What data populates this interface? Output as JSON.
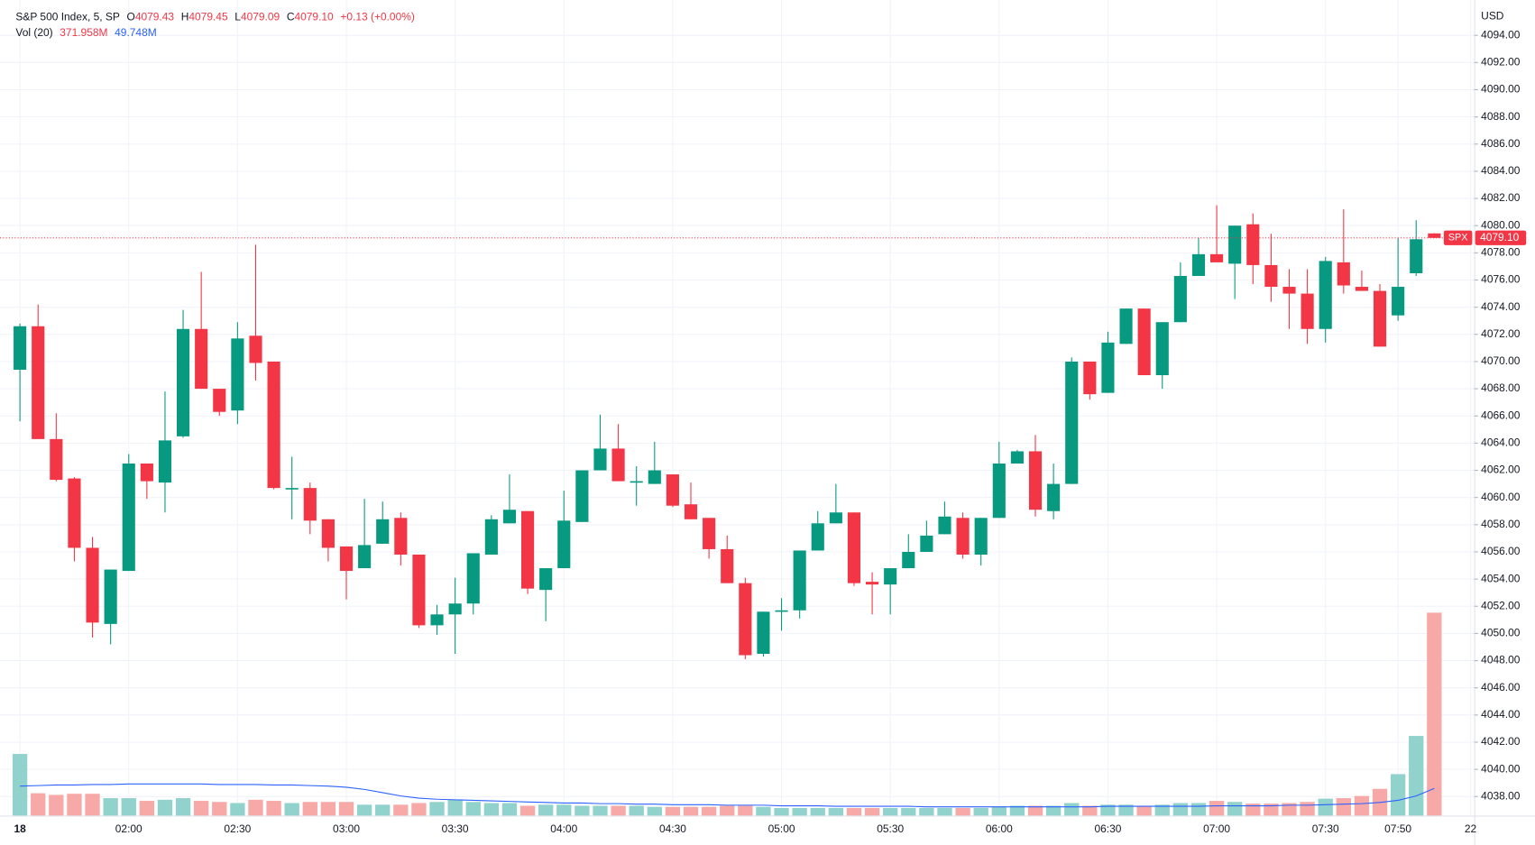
{
  "chart_data": {
    "type": "candlestick",
    "header": {
      "symbol": "S&P 500 Index, 5, SP",
      "open_key": "O",
      "open": "4079.43",
      "high_key": "H",
      "high": "4079.45",
      "low_key": "L",
      "low": "4079.09",
      "close_key": "C",
      "close": "4079.10",
      "change": "+0.13 (+0.00%)",
      "vol_name": "Vol (20)",
      "vol": "371.958M",
      "vol_ma": "49.748M"
    },
    "currency": "USD",
    "up_color": "#089981",
    "down_color": "#f23645",
    "open": [
      4069.4,
      4072.6,
      4064.3,
      4061.4,
      4056.3,
      4050.7,
      4054.6,
      4062.5,
      4061.1,
      4064.5,
      4072.4,
      4068.0,
      4066.4,
      4071.9,
      4070.0,
      4060.6,
      4060.7,
      4058.4,
      4056.4,
      4054.8,
      4056.6,
      4058.5,
      4055.8,
      4050.6,
      4051.4,
      4052.2,
      4055.8,
      4058.1,
      4059.0,
      4053.2,
      4054.8,
      4058.2,
      4062.0,
      4063.6,
      4061.1,
      4061.0,
      4061.7,
      4059.5,
      4058.5,
      4056.2,
      4053.7,
      4048.5,
      4051.6,
      4051.7,
      4056.1,
      4058.1,
      4058.9,
      4053.8,
      4053.6,
      4054.8,
      4056.0,
      4057.3,
      4058.5,
      4055.8,
      4058.5,
      4062.5,
      4063.4,
      4059.0,
      4061.0,
      4070.0,
      4067.7,
      4071.3,
      4073.9,
      4069.0,
      4072.9,
      4076.3,
      4077.9,
      4077.2,
      4080.1,
      4077.1,
      4075.5,
      4075.0,
      4072.4,
      4077.3,
      4075.5,
      4075.2,
      4073.4,
      4076.5,
      4079.43
    ],
    "high": [
      4072.8,
      4074.2,
      4066.2,
      4061.5,
      4057.1,
      4054.7,
      4063.2,
      4062.5,
      4067.8,
      4073.8,
      4076.6,
      4068.0,
      4072.9,
      4078.6,
      4070.0,
      4063.0,
      4061.1,
      4058.4,
      4056.4,
      4059.9,
      4059.7,
      4058.9,
      4055.8,
      4052.1,
      4054.1,
      4055.9,
      4058.7,
      4061.7,
      4059.0,
      4054.8,
      4060.5,
      4062.0,
      4066.1,
      4065.4,
      4062.3,
      4064.1,
      4061.7,
      4061.1,
      4058.5,
      4057.2,
      4054.1,
      4051.6,
      4052.6,
      4056.1,
      4059.0,
      4061.0,
      4058.9,
      4054.5,
      4054.8,
      4057.3,
      4058.3,
      4059.7,
      4058.9,
      4058.5,
      4064.1,
      4063.5,
      4064.6,
      4062.5,
      4070.3,
      4070.0,
      4072.2,
      4073.9,
      4073.9,
      4072.9,
      4077.3,
      4079.1,
      4081.5,
      4080.0,
      4080.9,
      4079.4,
      4076.8,
      4076.8,
      4077.7,
      4081.2,
      4076.7,
      4075.7,
      4079.1,
      4080.4,
      4079.45
    ],
    "low": [
      4065.6,
      4064.3,
      4061.2,
      4055.3,
      4049.7,
      4049.2,
      4054.6,
      4059.9,
      4058.9,
      4064.4,
      4068.0,
      4066.0,
      4065.4,
      4068.6,
      4060.6,
      4058.4,
      4057.3,
      4055.3,
      4052.5,
      4054.8,
      4056.6,
      4055.0,
      4050.4,
      4049.9,
      4048.5,
      4051.4,
      4055.8,
      4058.1,
      4052.9,
      4050.9,
      4054.8,
      4058.2,
      4062.0,
      4061.2,
      4059.4,
      4061.0,
      4059.3,
      4058.4,
      4055.5,
      4053.7,
      4048.1,
      4048.3,
      4050.2,
      4051.1,
      4056.1,
      4058.1,
      4053.5,
      4051.4,
      4051.4,
      4054.8,
      4056.0,
      4057.3,
      4055.5,
      4055.0,
      4058.5,
      4062.5,
      4058.6,
      4058.4,
      4061.0,
      4067.2,
      4067.7,
      4071.3,
      4069.0,
      4068.0,
      4072.9,
      4076.3,
      4077.3,
      4074.6,
      4075.7,
      4074.4,
      4072.4,
      4071.3,
      4071.4,
      4075.0,
      4075.2,
      4071.1,
      4073.0,
      4076.3,
      4079.09
    ],
    "close": [
      4072.6,
      4064.3,
      4061.3,
      4056.3,
      4050.8,
      4054.7,
      4062.5,
      4061.2,
      4064.2,
      4072.4,
      4068.0,
      4066.3,
      4071.7,
      4069.9,
      4060.7,
      4060.7,
      4058.3,
      4056.3,
      4054.6,
      4056.5,
      4058.4,
      4055.8,
      4050.6,
      4051.4,
      4052.2,
      4055.9,
      4058.4,
      4059.1,
      4053.3,
      4054.8,
      4058.3,
      4062.0,
      4063.6,
      4061.2,
      4061.2,
      4062.0,
      4059.4,
      4058.4,
      4056.2,
      4053.7,
      4048.4,
      4051.6,
      4051.7,
      4056.1,
      4058.1,
      4058.9,
      4053.7,
      4053.6,
      4054.8,
      4056.0,
      4057.2,
      4058.6,
      4055.8,
      4058.5,
      4062.5,
      4063.4,
      4059.1,
      4061.0,
      4070.0,
      4067.6,
      4071.4,
      4073.9,
      4069.0,
      4072.9,
      4076.3,
      4077.9,
      4077.3,
      4080.0,
      4077.1,
      4075.5,
      4075.0,
      4072.4,
      4077.4,
      4075.6,
      4075.2,
      4071.1,
      4075.5,
      4079.0,
      4079.1
    ],
    "volume": {
      "name": "Vol",
      "axis": "y2",
      "up_color": "#92d2cc",
      "down_color": "#f7a9a7",
      "values": [
        113,
        41,
        38,
        40,
        40,
        32,
        32,
        27,
        29,
        32,
        27,
        25,
        23,
        29,
        27,
        23,
        25,
        25,
        25,
        20,
        20,
        20,
        23,
        25,
        29,
        25,
        23,
        23,
        18,
        20,
        20,
        18,
        18,
        18,
        18,
        16,
        16,
        16,
        16,
        18,
        18,
        16,
        14,
        14,
        14,
        14,
        14,
        14,
        14,
        14,
        14,
        14,
        14,
        14,
        16,
        18,
        18,
        18,
        23,
        18,
        20,
        20,
        18,
        20,
        23,
        23,
        27,
        25,
        22,
        22,
        23,
        25,
        31,
        32,
        36,
        49,
        76,
        146,
        371.958
      ]
    },
    "volume_ma": {
      "axis": "y2",
      "color": "#2962ff",
      "values": [
        54,
        55,
        56,
        56,
        57,
        57,
        58,
        58,
        58,
        58,
        58,
        57,
        57,
        57,
        56,
        56,
        55,
        54,
        52,
        48,
        42,
        36,
        32,
        30,
        29,
        28,
        27,
        26,
        25,
        24,
        23,
        23,
        22,
        22,
        21,
        21,
        20,
        20,
        20,
        19,
        19,
        19,
        18,
        18,
        18,
        17,
        17,
        17,
        17,
        17,
        16,
        16,
        16,
        16,
        16,
        16,
        16,
        16,
        16,
        16,
        17,
        17,
        17,
        17,
        17,
        17,
        18,
        18,
        18,
        18,
        19,
        19,
        20,
        21,
        22,
        24,
        28,
        36,
        49.748
      ]
    },
    "last_price": {
      "value": 4079.1,
      "label": "4079.10",
      "tag": "SPX"
    },
    "xlim": [
      -1.1,
      80.2
    ],
    "xticks": [
      {
        "value": 0,
        "label": "18"
      },
      {
        "value": 6,
        "label": "02:00"
      },
      {
        "value": 12,
        "label": "02:30"
      },
      {
        "value": 18,
        "label": "03:00"
      },
      {
        "value": 24,
        "label": "03:30"
      },
      {
        "value": 30,
        "label": "04:00"
      },
      {
        "value": 36,
        "label": "04:30"
      },
      {
        "value": 42,
        "label": "05:00"
      },
      {
        "value": 48,
        "label": "05:30"
      },
      {
        "value": 54,
        "label": "06:00"
      },
      {
        "value": 60,
        "label": "06:30"
      },
      {
        "value": 66,
        "label": "07:00"
      },
      {
        "value": 72,
        "label": "07:30"
      },
      {
        "value": 76,
        "label": "07:50"
      },
      {
        "value": 80,
        "label": "22"
      }
    ],
    "ylim": [
      4036.6,
      4096.6
    ],
    "yticks": [
      {
        "value": 4038,
        "label": "4038.00"
      },
      {
        "value": 4040,
        "label": "4040.00"
      },
      {
        "value": 4042,
        "label": "4042.00"
      },
      {
        "value": 4044,
        "label": "4044.00"
      },
      {
        "value": 4046,
        "label": "4046.00"
      },
      {
        "value": 4048,
        "label": "4048.00"
      },
      {
        "value": 4050,
        "label": "4050.00"
      },
      {
        "value": 4052,
        "label": "4052.00"
      },
      {
        "value": 4054,
        "label": "4054.00"
      },
      {
        "value": 4056,
        "label": "4056.00"
      },
      {
        "value": 4058,
        "label": "4058.00"
      },
      {
        "value": 4060,
        "label": "4060.00"
      },
      {
        "value": 4062,
        "label": "4062.00"
      },
      {
        "value": 4064,
        "label": "4064.00"
      },
      {
        "value": 4066,
        "label": "4066.00"
      },
      {
        "value": 4068,
        "label": "4068.00"
      },
      {
        "value": 4070,
        "label": "4070.00"
      },
      {
        "value": 4072,
        "label": "4072.00"
      },
      {
        "value": 4074,
        "label": "4074.00"
      },
      {
        "value": 4076,
        "label": "4076.00"
      },
      {
        "value": 4078,
        "label": "4078.00"
      },
      {
        "value": 4080,
        "label": "4080.00"
      },
      {
        "value": 4082,
        "label": "4082.00"
      },
      {
        "value": 4084,
        "label": "4084.00"
      },
      {
        "value": 4086,
        "label": "4086.00"
      },
      {
        "value": 4088,
        "label": "4088.00"
      },
      {
        "value": 4090,
        "label": "4090.00"
      },
      {
        "value": 4092,
        "label": "4092.00"
      },
      {
        "value": 4094,
        "label": "4094.00"
      }
    ],
    "y2lim": [
      0,
      1495
    ],
    "grid": true
  }
}
